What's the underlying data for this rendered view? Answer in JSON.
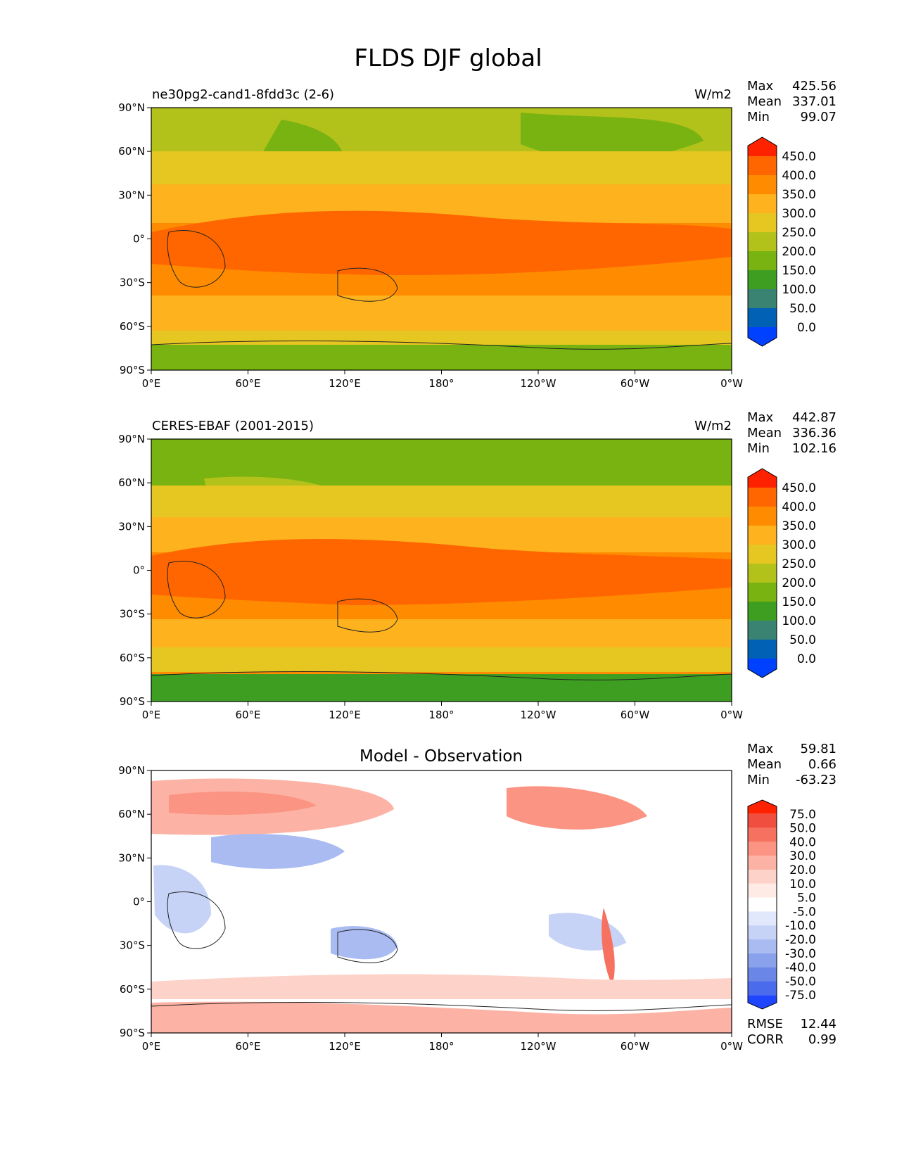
{
  "title": "FLDS DJF global",
  "chart_data": [
    {
      "type": "heatmap",
      "name": "model",
      "left_title": "ne30pg2-cand1-8fdd3c (2-6)",
      "center_title": "",
      "units": "W/m2",
      "stats": [
        {
          "label": "Max",
          "value": "425.56"
        },
        {
          "label": "Mean",
          "value": "337.01"
        },
        {
          "label": "Min",
          "value": "99.07"
        }
      ],
      "footer": [],
      "xticks": [
        "0°E",
        "60°E",
        "120°E",
        "180°",
        "120°W",
        "60°W",
        "0°W"
      ],
      "yticks": [
        "90°N",
        "60°N",
        "30°N",
        "0°",
        "30°S",
        "60°S",
        "90°S"
      ],
      "xlim": [
        0,
        360
      ],
      "ylim": [
        -90,
        90
      ],
      "colorbar": {
        "levels": [
          "450.0",
          "400.0",
          "350.0",
          "300.0",
          "250.0",
          "200.0",
          "150.0",
          "100.0",
          "50.0",
          "0.0"
        ],
        "colors": [
          "#ff2200",
          "#ff6600",
          "#ff8c00",
          "#fdb21e",
          "#e6c620",
          "#b3c21b",
          "#79b311",
          "#3e9e21",
          "#3a8372",
          "#0061b5",
          "#0040ff"
        ]
      }
    },
    {
      "type": "heatmap",
      "name": "obs",
      "left_title": "CERES-EBAF (2001-2015)",
      "center_title": "",
      "units": "W/m2",
      "stats": [
        {
          "label": "Max",
          "value": "442.87"
        },
        {
          "label": "Mean",
          "value": "336.36"
        },
        {
          "label": "Min",
          "value": "102.16"
        }
      ],
      "footer": [],
      "xticks": [
        "0°E",
        "60°E",
        "120°E",
        "180°",
        "120°W",
        "60°W",
        "0°W"
      ],
      "yticks": [
        "90°N",
        "60°N",
        "30°N",
        "0°",
        "30°S",
        "60°S",
        "90°S"
      ],
      "xlim": [
        0,
        360
      ],
      "ylim": [
        -90,
        90
      ],
      "colorbar": {
        "levels": [
          "450.0",
          "400.0",
          "350.0",
          "300.0",
          "250.0",
          "200.0",
          "150.0",
          "100.0",
          "50.0",
          "0.0"
        ],
        "colors": [
          "#ff2200",
          "#ff6600",
          "#ff8c00",
          "#fdb21e",
          "#e6c620",
          "#b3c21b",
          "#79b311",
          "#3e9e21",
          "#3a8372",
          "#0061b5",
          "#0040ff"
        ]
      }
    },
    {
      "type": "heatmap",
      "name": "diff",
      "left_title": "",
      "center_title": "Model - Observation",
      "units": "",
      "stats": [
        {
          "label": "Max",
          "value": "59.81"
        },
        {
          "label": "Mean",
          "value": "0.66"
        },
        {
          "label": "Min",
          "value": "-63.23"
        }
      ],
      "footer": [
        {
          "label": "RMSE",
          "value": "12.44"
        },
        {
          "label": "CORR",
          "value": "0.99"
        }
      ],
      "xticks": [
        "0°E",
        "60°E",
        "120°E",
        "180°",
        "120°W",
        "60°W",
        "0°W"
      ],
      "yticks": [
        "90°N",
        "60°N",
        "30°N",
        "0°",
        "30°S",
        "60°S",
        "90°S"
      ],
      "xlim": [
        0,
        360
      ],
      "ylim": [
        -90,
        90
      ],
      "colorbar": {
        "levels": [
          "75.0",
          "50.0",
          "40.0",
          "30.0",
          "20.0",
          "10.0",
          "5.0",
          "-5.0",
          "-10.0",
          "-20.0",
          "-30.0",
          "-40.0",
          "-50.0",
          "-75.0"
        ],
        "colors": [
          "#ff2200",
          "#f04e3e",
          "#f6715f",
          "#fb9482",
          "#fcb3a5",
          "#fdd2c8",
          "#feebe6",
          "#ffffff",
          "#e2e8fb",
          "#c7d3f6",
          "#a9bbf1",
          "#8aa2ec",
          "#6a87e8",
          "#4a6bec",
          "#1f45ff"
        ]
      }
    }
  ]
}
